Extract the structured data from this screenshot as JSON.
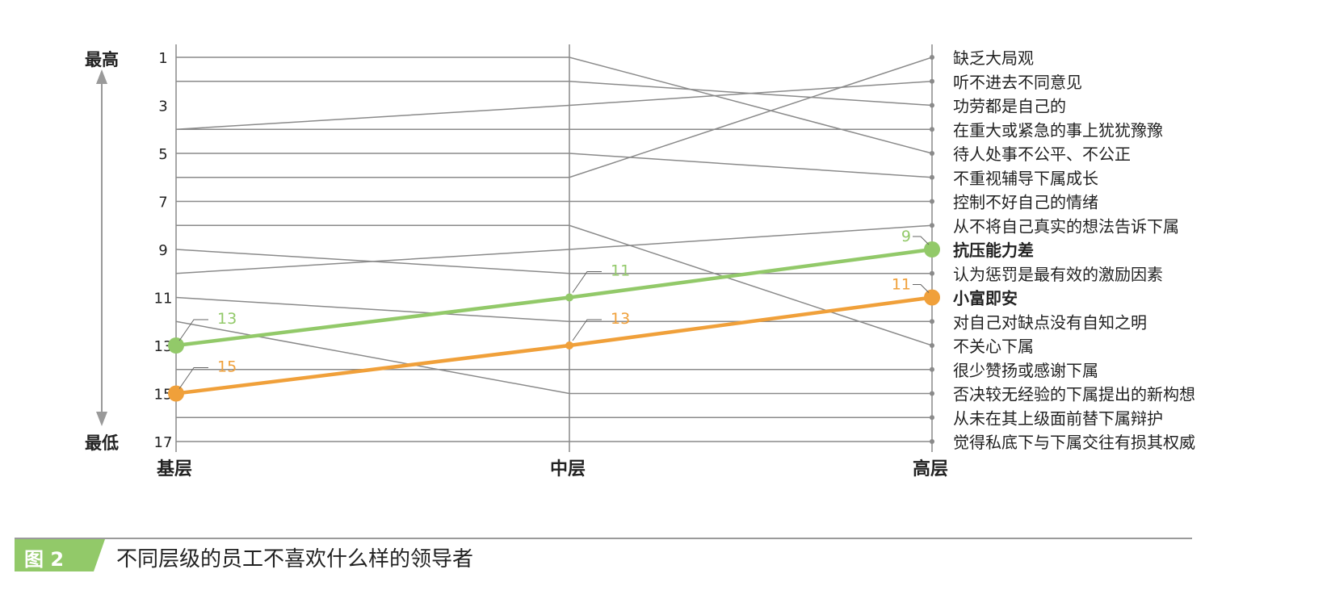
{
  "chart_data": {
    "type": "line",
    "categories": [
      "基层",
      "中层",
      "高层"
    ],
    "ylim": [
      1,
      17
    ],
    "y_axis_inverted": true,
    "y_ticks": [
      "1",
      "3",
      "5",
      "7",
      "9",
      "11",
      "13",
      "15",
      "17"
    ],
    "y_top_label": "最高",
    "y_bottom_label": "最低",
    "series": [
      {
        "name": "缺乏大局观",
        "values": [
          6,
          6,
          1
        ]
      },
      {
        "name": "听不进去不同意见",
        "values": [
          4,
          3,
          2
        ]
      },
      {
        "name": "功劳都是自己的",
        "values": [
          2,
          2,
          3
        ]
      },
      {
        "name": "在重大或紧急的事上犹犹豫豫",
        "values": [
          4,
          4,
          4
        ]
      },
      {
        "name": "待人处事不公平、不公正",
        "values": [
          1,
          1,
          5
        ]
      },
      {
        "name": "不重视辅导下属成长",
        "values": [
          5,
          5,
          6
        ]
      },
      {
        "name": "控制不好自己的情绪",
        "values": [
          7,
          7,
          7
        ]
      },
      {
        "name": "从不将自己真实的想法告诉下属",
        "values": [
          10,
          9,
          8
        ]
      },
      {
        "name": "抗压能力差",
        "values": [
          13,
          11,
          9
        ],
        "highlight": true,
        "color": "#92c969"
      },
      {
        "name": "认为惩罚是最有效的激励因素",
        "values": [
          9,
          10,
          10
        ]
      },
      {
        "name": "小富即安",
        "values": [
          15,
          13,
          11
        ],
        "highlight": true,
        "color": "#f0a03a"
      },
      {
        "name": "对自己对缺点没有自知之明",
        "values": [
          11,
          12,
          12
        ]
      },
      {
        "name": "不关心下属",
        "values": [
          8,
          8,
          13
        ]
      },
      {
        "name": "很少赞扬或感谢下属",
        "values": [
          14,
          14,
          14
        ]
      },
      {
        "name": "否决较无经验的下属提出的新构想",
        "values": [
          12,
          15,
          15
        ]
      },
      {
        "name": "从未在其上级面前替下属辩护",
        "values": [
          16,
          16,
          16
        ]
      },
      {
        "name": "觉得私底下与下属交往有损其权威",
        "values": [
          17,
          17,
          17
        ]
      }
    ],
    "highlight_labels": {
      "抗压能力差": [
        "13",
        "11",
        "9"
      ],
      "小富即安": [
        "15",
        "13",
        "11"
      ]
    },
    "line_color": "#8a8a8a"
  },
  "figure": {
    "tag": "图 2",
    "title": "不同层级的员工不喜欢什么样的领导者",
    "tag_color": "#92c969"
  }
}
